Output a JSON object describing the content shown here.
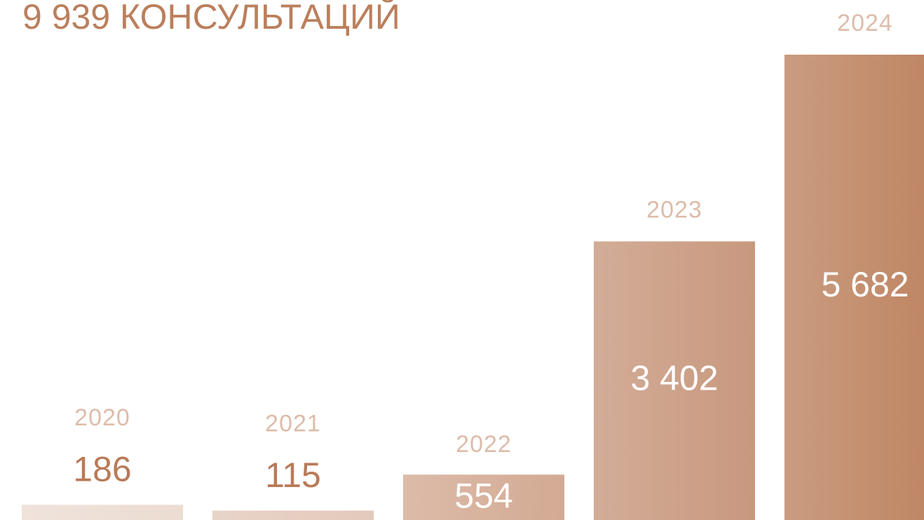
{
  "chart_data": {
    "type": "bar",
    "title": "9 939 КОНСУЛЬТАЦИЙ",
    "categories": [
      "2020",
      "2021",
      "2022",
      "2023",
      "2024"
    ],
    "values": [
      186,
      115,
      554,
      3402,
      5682
    ],
    "value_labels": [
      "186",
      "115",
      "554",
      "3 402",
      "5 682"
    ],
    "colors": [
      "#ecdcd2",
      "#e3c9bb",
      "#d3aa93",
      "#c8987e",
      "#bd8360"
    ]
  }
}
